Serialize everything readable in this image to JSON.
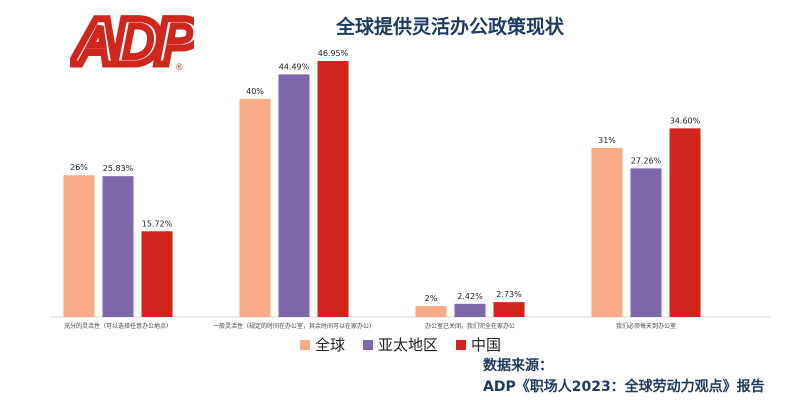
{
  "logo": {
    "text": "ADP",
    "registered": "®",
    "color": "#d0271d"
  },
  "title": "全球提供灵活办公政策现状",
  "legend": [
    {
      "label": "全球",
      "color": "#f8ab85"
    },
    {
      "label": "亚太地区",
      "color": "#7e68ad"
    },
    {
      "label": "中国",
      "color": "#d2231d"
    }
  ],
  "source": {
    "line1": "数据来源：",
    "line2": "ADP《职场人2023：全球劳动力观点》报告"
  },
  "chart_data": {
    "type": "bar",
    "title": "全球提供灵活办公政策现状",
    "categories": [
      "充分的灵活性（可以选择任意办公地点）",
      "一般灵活性（规定的时间在办公室，其余时间可以在家办公）",
      "办公室已关闭，我们完全在家办公",
      "我们必须每天到办公室"
    ],
    "series": [
      {
        "name": "全球",
        "color": "#f8ab85",
        "values": [
          26,
          40,
          2,
          31
        ],
        "labels": [
          "26%",
          "40%",
          "2%",
          "31%"
        ]
      },
      {
        "name": "亚太地区",
        "color": "#7e68ad",
        "values": [
          25.83,
          44.49,
          2.42,
          27.26
        ],
        "labels": [
          "25.83%",
          "44.49%",
          "2.42%",
          "27.26%"
        ]
      },
      {
        "name": "中国",
        "color": "#d2231d",
        "values": [
          15.72,
          46.95,
          2.73,
          34.6
        ],
        "labels": [
          "15.72%",
          "46.95%",
          "2.73%",
          "34.60%"
        ]
      }
    ],
    "ylim": [
      0,
      50
    ],
    "grid": false,
    "legend_position": "bottom"
  }
}
